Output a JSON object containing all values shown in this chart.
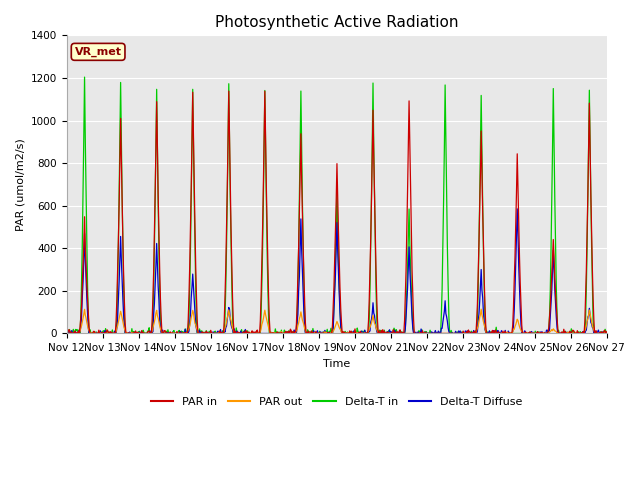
{
  "title": "Photosynthetic Active Radiation",
  "ylabel": "PAR (umol/m2/s)",
  "xlabel": "Time",
  "ylim": [
    0,
    1400
  ],
  "annotation": "VR_met",
  "fig_facecolor": "#ffffff",
  "plot_facecolor": "#e8e8e8",
  "colors": {
    "PAR_in": "#cc0000",
    "PAR_out": "#ff9900",
    "Delta_T_in": "#00cc00",
    "Delta_T_Diffuse": "#0000cc"
  },
  "xtick_labels": [
    "Nov 12",
    "Nov 13",
    "Nov 14",
    "Nov 15",
    "Nov 16",
    "Nov 17",
    "Nov 18",
    "Nov 19",
    "Nov 20",
    "Nov 21",
    "Nov 22",
    "Nov 23",
    "Nov 24",
    "Nov 25",
    "Nov 26",
    "Nov 27"
  ],
  "n_days": 15,
  "ppd": 48,
  "grid_color": "#cccccc",
  "day_params": [
    {
      "par_in": 530,
      "par_out": 110,
      "dtin": 1200,
      "dtdiff": 460
    },
    {
      "par_in": 1010,
      "par_out": 110,
      "dtin": 1190,
      "dtdiff": 450
    },
    {
      "par_in": 1090,
      "par_out": 110,
      "dtin": 1150,
      "dtdiff": 415
    },
    {
      "par_in": 1145,
      "par_out": 110,
      "dtin": 1150,
      "dtdiff": 285
    },
    {
      "par_in": 1145,
      "par_out": 110,
      "dtin": 1170,
      "dtdiff": 130
    },
    {
      "par_in": 1145,
      "par_out": 110,
      "dtin": 1145,
      "dtdiff": 0
    },
    {
      "par_in": 940,
      "par_out": 100,
      "dtin": 1140,
      "dtdiff": 525
    },
    {
      "par_in": 800,
      "par_out": 55,
      "dtin": 670,
      "dtdiff": 520
    },
    {
      "par_in": 1060,
      "par_out": 80,
      "dtin": 1180,
      "dtdiff": 135
    },
    {
      "par_in": 1100,
      "par_out": 0,
      "dtin": 575,
      "dtdiff": 400
    },
    {
      "par_in": 0,
      "par_out": 0,
      "dtin": 1165,
      "dtdiff": 140
    },
    {
      "par_in": 950,
      "par_out": 110,
      "dtin": 1130,
      "dtdiff": 285
    },
    {
      "par_in": 840,
      "par_out": 70,
      "dtin": 0,
      "dtdiff": 600
    },
    {
      "par_in": 450,
      "par_out": 20,
      "dtin": 1155,
      "dtdiff": 390
    },
    {
      "par_in": 1100,
      "par_out": 110,
      "dtin": 1155,
      "dtdiff": 120
    }
  ]
}
